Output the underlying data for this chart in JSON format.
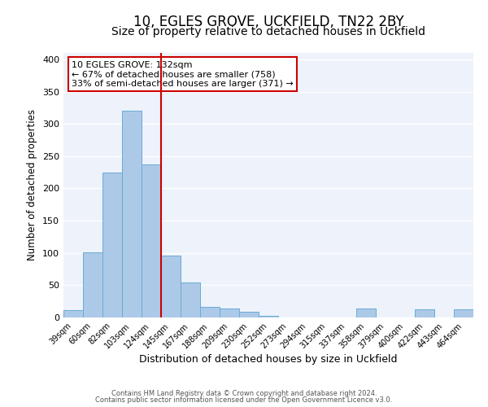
{
  "title": "10, EGLES GROVE, UCKFIELD, TN22 2BY",
  "subtitle": "Size of property relative to detached houses in Uckfield",
  "xlabel": "Distribution of detached houses by size in Uckfield",
  "ylabel": "Number of detached properties",
  "bin_labels": [
    "39sqm",
    "60sqm",
    "82sqm",
    "103sqm",
    "124sqm",
    "145sqm",
    "167sqm",
    "188sqm",
    "209sqm",
    "230sqm",
    "252sqm",
    "273sqm",
    "294sqm",
    "315sqm",
    "337sqm",
    "358sqm",
    "379sqm",
    "400sqm",
    "422sqm",
    "443sqm",
    "464sqm"
  ],
  "bar_values": [
    11,
    101,
    225,
    320,
    237,
    96,
    54,
    17,
    14,
    9,
    2,
    0,
    0,
    0,
    0,
    14,
    0,
    0,
    13,
    0,
    13
  ],
  "bar_color": "#adc9e8",
  "bar_edge_color": "#6aaad4",
  "vline_color": "#cc0000",
  "annotation_title": "10 EGLES GROVE: 132sqm",
  "annotation_line1": "← 67% of detached houses are smaller (758)",
  "annotation_line2": "33% of semi-detached houses are larger (371) →",
  "annotation_box_color": "#cc0000",
  "ylim": [
    0,
    410
  ],
  "yticks": [
    0,
    50,
    100,
    150,
    200,
    250,
    300,
    350,
    400
  ],
  "footer_line1": "Contains HM Land Registry data © Crown copyright and database right 2024.",
  "footer_line2": "Contains public sector information licensed under the Open Government Licence v3.0.",
  "bg_color": "#edf2fb",
  "title_fontsize": 12,
  "subtitle_fontsize": 10,
  "vline_pos": 4.5
}
